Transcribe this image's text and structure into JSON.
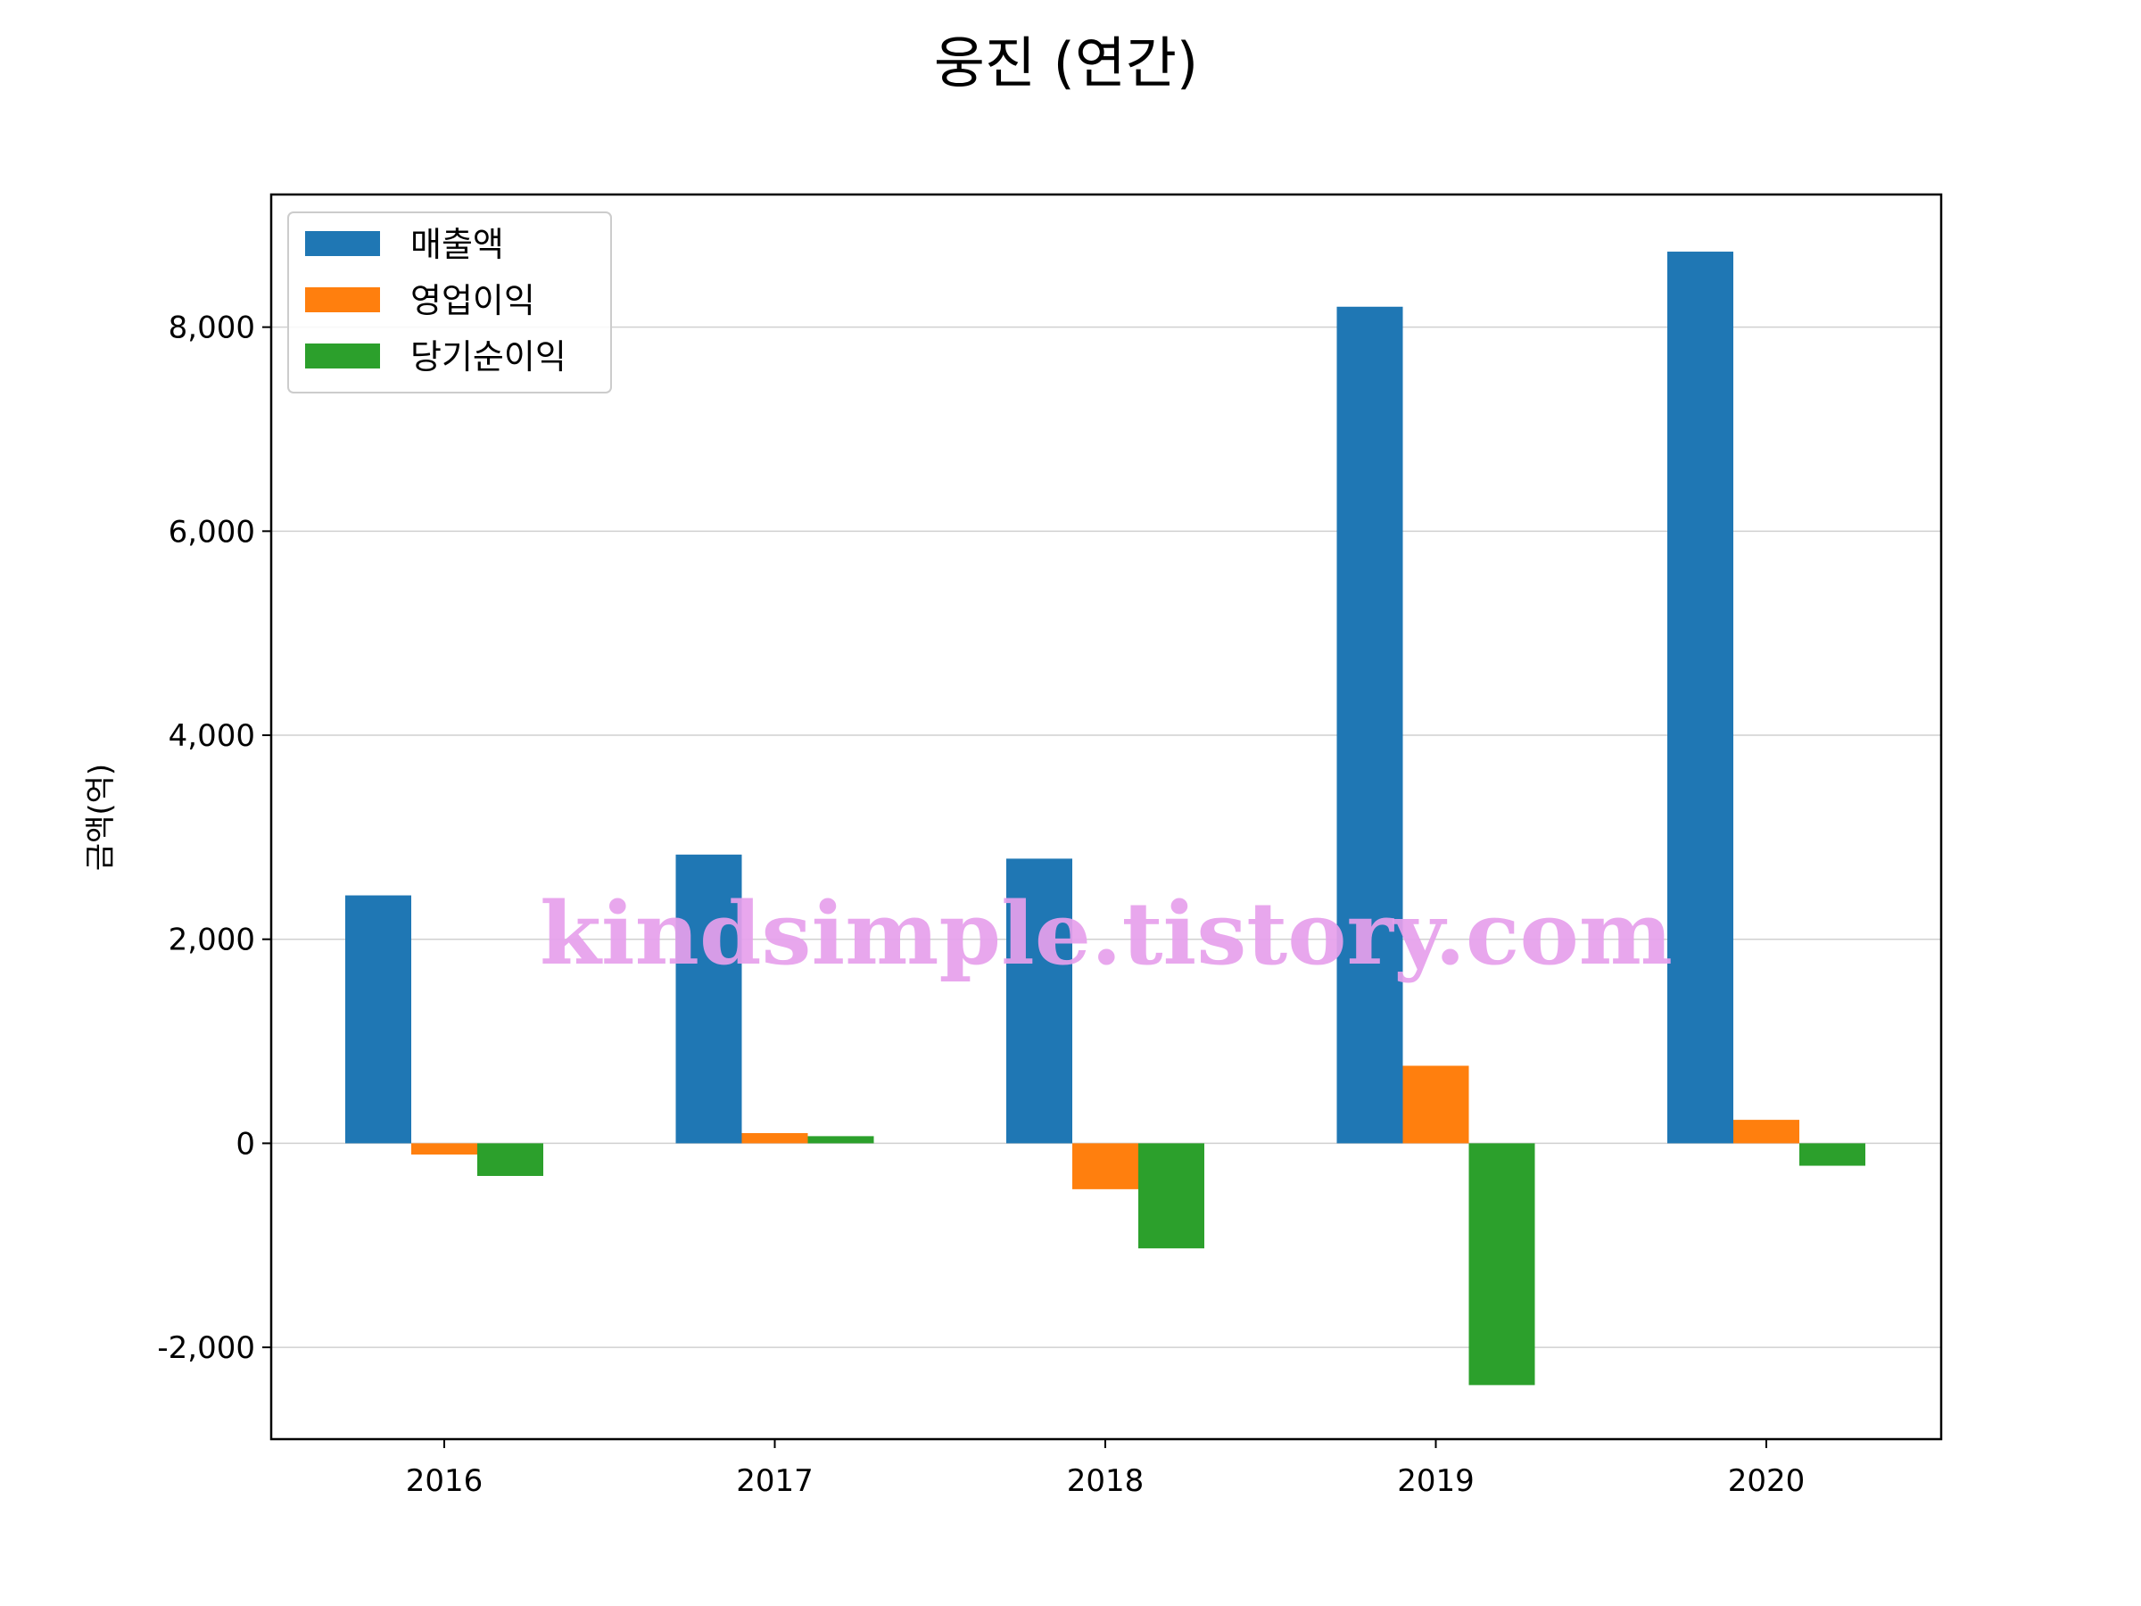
{
  "chart_data": {
    "type": "bar",
    "title": "웅진 (연간)",
    "xlabel": "",
    "ylabel": "금액(억)",
    "categories": [
      "2016",
      "2017",
      "2018",
      "2019",
      "2020"
    ],
    "series": [
      {
        "name": "매출액",
        "color": "#1f77b4",
        "values": [
          2430,
          2830,
          2790,
          8200,
          8740
        ]
      },
      {
        "name": "영업이익",
        "color": "#ff7f0e",
        "values": [
          -110,
          100,
          -450,
          760,
          230
        ]
      },
      {
        "name": "당기순이익",
        "color": "#2ca02c",
        "values": [
          -320,
          70,
          -1030,
          -2370,
          -220
        ]
      }
    ],
    "ylim": [
      -2900,
      9300
    ],
    "yticks": [
      -2000,
      0,
      2000,
      4000,
      6000,
      8000
    ],
    "ytick_labels": [
      "-2,000",
      "0",
      "2,000",
      "4,000",
      "6,000",
      "8,000"
    ],
    "grid": "y",
    "legend": "top-left"
  },
  "watermark": "kindsimple.tistory.com"
}
